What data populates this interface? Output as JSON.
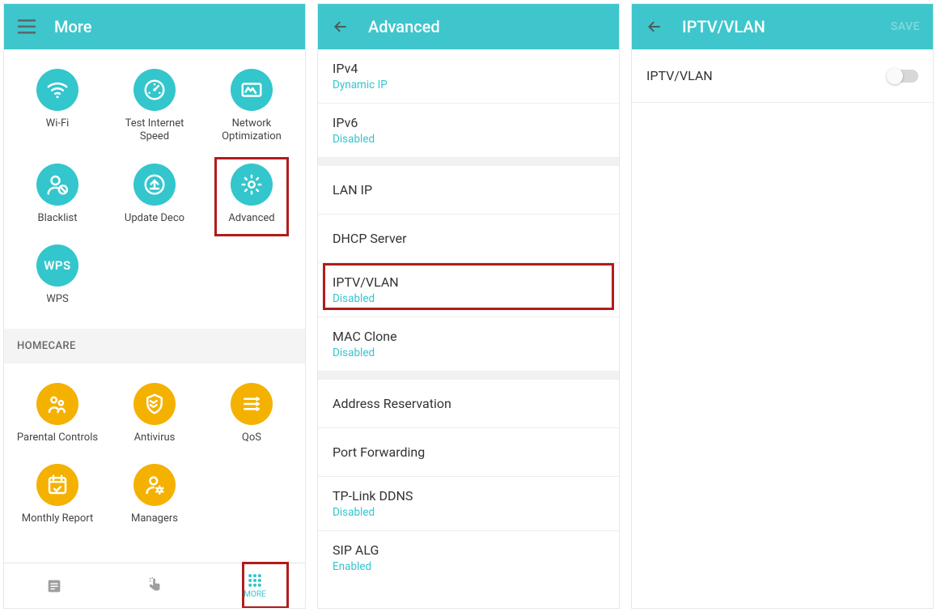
{
  "colors": {
    "header_bg": "#3ec6cc",
    "teal": "#33c6cc",
    "amber": "#f5b100",
    "hamburger": "#757575",
    "highlight": "#b11c1c",
    "text_dark": "#333333",
    "text_sub": "#33c6cc",
    "grey_bg": "#f1f1f1",
    "save_grey": "#8e9ea0"
  },
  "panel1": {
    "title": "More",
    "grid": [
      {
        "id": "wifi",
        "label": "Wi-Fi",
        "icon": "wifi",
        "color": "teal"
      },
      {
        "id": "speed",
        "label": "Test Internet Speed",
        "icon": "gauge",
        "color": "teal"
      },
      {
        "id": "netopt",
        "label": "Network Optimization",
        "icon": "optimize",
        "color": "teal"
      },
      {
        "id": "blacklist",
        "label": "Blacklist",
        "icon": "blacklist",
        "color": "teal"
      },
      {
        "id": "update",
        "label": "Update Deco",
        "icon": "update",
        "color": "teal"
      },
      {
        "id": "advanced",
        "label": "Advanced",
        "icon": "gear",
        "color": "teal",
        "highlight": true
      },
      {
        "id": "wps",
        "label": "WPS",
        "icon": "wps",
        "color": "teal"
      }
    ],
    "homecare_header": "HOMECARE",
    "homecare": [
      {
        "id": "parental",
        "label": "Parental Controls",
        "icon": "parental",
        "color": "amber"
      },
      {
        "id": "antivirus",
        "label": "Antivirus",
        "icon": "shield",
        "color": "amber"
      },
      {
        "id": "qos",
        "label": "QoS",
        "icon": "qos",
        "color": "amber"
      },
      {
        "id": "monthly",
        "label": "Monthly Report",
        "icon": "calendar",
        "color": "amber"
      },
      {
        "id": "managers",
        "label": "Managers",
        "icon": "managers",
        "color": "amber"
      }
    ],
    "bottom_nav": {
      "more_label": "MORE",
      "active_index": 2
    }
  },
  "panel2": {
    "title": "Advanced",
    "groups": [
      [
        {
          "title": "IPv4",
          "sub": "Dynamic IP"
        },
        {
          "title": "IPv6",
          "sub": "Disabled"
        }
      ],
      [
        {
          "title": "LAN IP"
        },
        {
          "title": "DHCP Server"
        },
        {
          "title": "IPTV/VLAN",
          "sub": "Disabled",
          "highlight": true
        },
        {
          "title": "MAC Clone",
          "sub": "Disabled"
        }
      ],
      [
        {
          "title": "Address Reservation"
        },
        {
          "title": "Port Forwarding"
        },
        {
          "title": "TP-Link DDNS",
          "sub": "Disabled"
        },
        {
          "title": "SIP ALG",
          "sub": "Enabled"
        }
      ]
    ]
  },
  "panel3": {
    "title": "IPTV/VLAN",
    "save_label": "SAVE",
    "toggle_label": "IPTV/VLAN",
    "toggle_on": false
  }
}
